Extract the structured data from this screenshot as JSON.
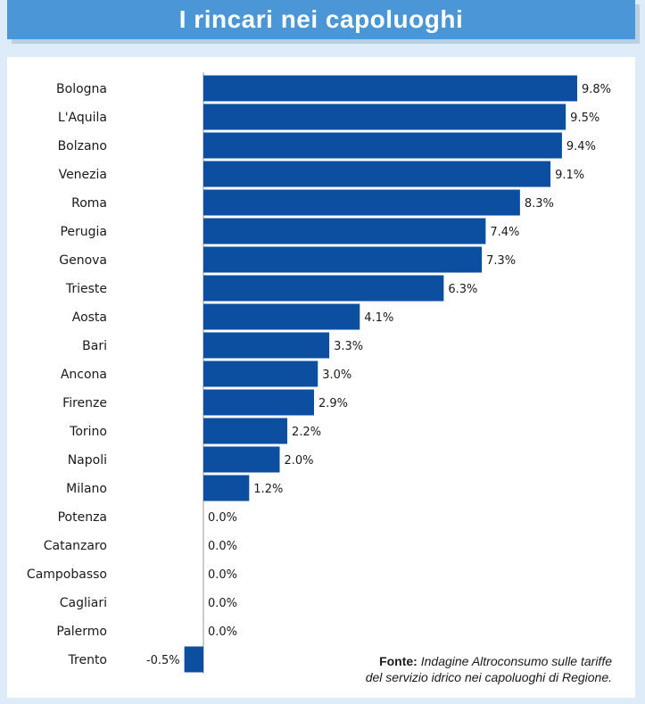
{
  "chart_data": {
    "type": "bar",
    "orientation": "horizontal",
    "title": "I rincari nei capoluoghi",
    "categories": [
      "Bologna",
      "L'Aquila",
      "Bolzano",
      "Venezia",
      "Roma",
      "Perugia",
      "Genova",
      "Trieste",
      "Aosta",
      "Bari",
      "Ancona",
      "Firenze",
      "Torino",
      "Napoli",
      "Milano",
      "Potenza",
      "Catanzaro",
      "Campobasso",
      "Cagliari",
      "Palermo",
      "Trento"
    ],
    "values": [
      9.8,
      9.5,
      9.4,
      9.1,
      8.3,
      7.4,
      7.3,
      6.3,
      4.1,
      3.3,
      3.0,
      2.9,
      2.2,
      2.0,
      1.2,
      0.0,
      0.0,
      0.0,
      0.0,
      0.0,
      -0.5
    ],
    "value_labels": [
      "9.8%",
      "9.5%",
      "9.4%",
      "9.1%",
      "8.3%",
      "7.4%",
      "7.3%",
      "6.3%",
      "4.1%",
      "3.3%",
      "3.0%",
      "2.9%",
      "2.2%",
      "2.0%",
      "1.2%",
      "0.0%",
      "0.0%",
      "0.0%",
      "0.0%",
      "0.0%",
      "-0.5%"
    ],
    "unit": "%",
    "xlim": [
      -0.5,
      9.8
    ],
    "bar_color": "#0c4fa0",
    "xlabel": "",
    "ylabel": ""
  },
  "source": {
    "label": "Fonte:",
    "text_line1": "Indagine Altroconsumo sulle tariffe",
    "text_line2": "del servizio idrico nei capoluoghi di Regione."
  },
  "colors": {
    "title_bg": "#4a96d6",
    "page_bg": "#ddecf8",
    "bar": "#0c4fa0"
  }
}
